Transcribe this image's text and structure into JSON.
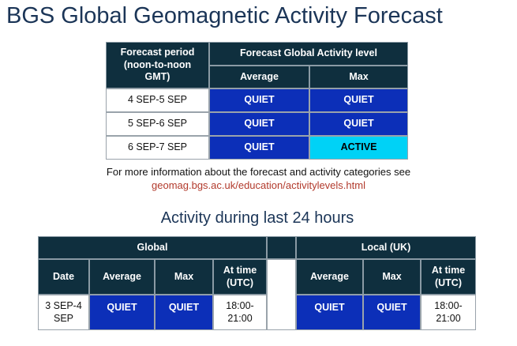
{
  "title": "BGS Global Geomagnetic Activity Forecast",
  "forecast_table": {
    "header": {
      "period": "Forecast period (noon-to-noon GMT)",
      "level": "Forecast Global Activity level",
      "average": "Average",
      "max": "Max"
    },
    "rows": [
      [
        "4 SEP-5 SEP",
        "QUIET",
        "QUIET"
      ],
      [
        "5 SEP-6 SEP",
        "QUIET",
        "QUIET"
      ],
      [
        "6 SEP-7 SEP",
        "QUIET",
        "ACTIVE"
      ]
    ]
  },
  "info": {
    "text": "For more information about the forecast and activity categories see",
    "link": "geomag.bgs.ac.uk/education/activitylevels.html"
  },
  "activity_title": "Activity during last 24 hours",
  "activity_table": {
    "groups": {
      "global": "Global",
      "local": "Local (UK)"
    },
    "columns": [
      "Date",
      "Average",
      "Max",
      "At time (UTC)",
      "Average",
      "Max",
      "At time (UTC)"
    ],
    "row": [
      "3 SEP-4 SEP",
      "QUIET",
      "QUIET",
      "18:00-21:00",
      "QUIET",
      "QUIET",
      "18:00-21:00"
    ]
  }
}
